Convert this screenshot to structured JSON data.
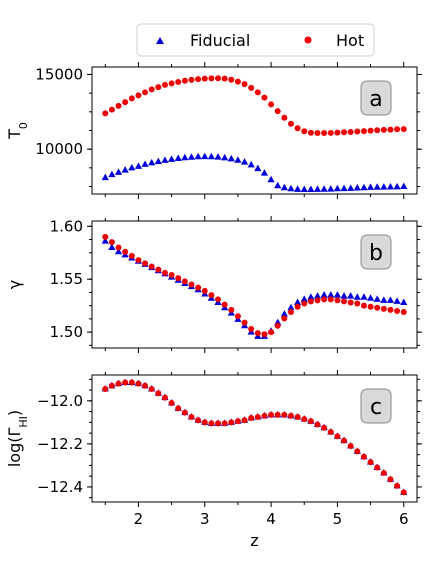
{
  "legend": {
    "entries": [
      {
        "label": "Fiducial",
        "marker": "triangle",
        "color": "#0000dd"
      },
      {
        "label": "Hot",
        "marker": "circle",
        "color": "#ee0000"
      }
    ]
  },
  "chart_data": [
    {
      "type": "scatter",
      "panel": "a",
      "ylabel": "T_0",
      "ylim": [
        7000,
        15500
      ],
      "yticks": [
        10000,
        15000
      ],
      "xlim": [
        1.3,
        6.2
      ],
      "xticks": [
        2,
        3,
        4,
        5,
        6
      ],
      "series": [
        {
          "name": "Fiducial",
          "x_start": 1.5,
          "x_step": 0.1,
          "y": [
            8100,
            8300,
            8450,
            8600,
            8750,
            8850,
            8980,
            9080,
            9170,
            9250,
            9320,
            9380,
            9430,
            9460,
            9490,
            9500,
            9490,
            9470,
            9420,
            9350,
            9260,
            9130,
            8950,
            8700,
            8400,
            7950,
            7550,
            7420,
            7350,
            7310,
            7300,
            7300,
            7310,
            7320,
            7330,
            7350,
            7360,
            7380,
            7400,
            7420,
            7440,
            7450,
            7460,
            7470,
            7480,
            7500
          ]
        },
        {
          "name": "Hot",
          "x_start": 1.5,
          "x_step": 0.1,
          "y": [
            12400,
            12650,
            12900,
            13150,
            13400,
            13600,
            13800,
            14000,
            14150,
            14300,
            14400,
            14500,
            14580,
            14640,
            14690,
            14720,
            14740,
            14750,
            14720,
            14650,
            14520,
            14350,
            14100,
            13800,
            13450,
            13000,
            12550,
            12100,
            11700,
            11400,
            11200,
            11100,
            11080,
            11080,
            11090,
            11110,
            11130,
            11150,
            11180,
            11210,
            11240,
            11270,
            11290,
            11310,
            11330,
            11340
          ]
        }
      ]
    },
    {
      "type": "scatter",
      "panel": "b",
      "ylabel": "γ",
      "ylim": [
        1.485,
        1.605
      ],
      "yticks": [
        1.5,
        1.55,
        1.6
      ],
      "xlim": [
        1.3,
        6.2
      ],
      "xticks": [
        2,
        3,
        4,
        5,
        6
      ],
      "series": [
        {
          "name": "Fiducial",
          "x_start": 1.5,
          "x_step": 0.1,
          "y": [
            1.586,
            1.58,
            1.576,
            1.573,
            1.57,
            1.567,
            1.564,
            1.561,
            1.558,
            1.555,
            1.552,
            1.549,
            1.546,
            1.543,
            1.54,
            1.536,
            1.532,
            1.528,
            1.523,
            1.518,
            1.512,
            1.506,
            1.5,
            1.496,
            1.496,
            1.501,
            1.509,
            1.517,
            1.523,
            1.528,
            1.531,
            1.533,
            1.534,
            1.535,
            1.535,
            1.535,
            1.534,
            1.534,
            1.533,
            1.533,
            1.532,
            1.531,
            1.53,
            1.53,
            1.529,
            1.528
          ]
        },
        {
          "name": "Hot",
          "x_start": 1.5,
          "x_step": 0.1,
          "y": [
            1.59,
            1.585,
            1.58,
            1.576,
            1.572,
            1.568,
            1.565,
            1.562,
            1.559,
            1.556,
            1.554,
            1.551,
            1.548,
            1.545,
            1.542,
            1.539,
            1.535,
            1.531,
            1.526,
            1.521,
            1.515,
            1.509,
            1.503,
            1.499,
            1.498,
            1.5,
            1.506,
            1.513,
            1.519,
            1.524,
            1.527,
            1.529,
            1.53,
            1.531,
            1.531,
            1.53,
            1.529,
            1.528,
            1.527,
            1.525,
            1.524,
            1.523,
            1.522,
            1.521,
            1.52,
            1.519
          ]
        }
      ]
    },
    {
      "type": "scatter",
      "panel": "c",
      "ylabel": "log(Γ_HI)",
      "ylim": [
        -12.47,
        -11.88
      ],
      "yticks": [
        -12.0,
        -12.2,
        -12.4
      ],
      "xlim": [
        1.3,
        6.2
      ],
      "xticks": [
        2,
        3,
        4,
        5,
        6
      ],
      "xlabel": "z",
      "series": [
        {
          "name": "Fiducial",
          "x_start": 1.5,
          "x_step": 0.1,
          "y": [
            -11.945,
            -11.93,
            -11.92,
            -11.915,
            -11.915,
            -11.92,
            -11.93,
            -11.945,
            -11.965,
            -11.985,
            -12.01,
            -12.035,
            -12.055,
            -12.075,
            -12.09,
            -12.1,
            -12.105,
            -12.105,
            -12.105,
            -12.1,
            -12.095,
            -12.09,
            -12.08,
            -12.075,
            -12.07,
            -12.065,
            -12.065,
            -12.065,
            -12.07,
            -12.075,
            -12.085,
            -12.095,
            -12.11,
            -12.125,
            -12.145,
            -12.165,
            -12.185,
            -12.21,
            -12.235,
            -12.26,
            -12.285,
            -12.31,
            -12.335,
            -12.365,
            -12.395,
            -12.425
          ]
        },
        {
          "name": "Hot",
          "x_start": 1.5,
          "x_step": 0.1,
          "y": [
            -11.945,
            -11.93,
            -11.92,
            -11.915,
            -11.915,
            -11.92,
            -11.93,
            -11.945,
            -11.965,
            -11.985,
            -12.01,
            -12.035,
            -12.055,
            -12.075,
            -12.09,
            -12.1,
            -12.105,
            -12.105,
            -12.105,
            -12.1,
            -12.095,
            -12.09,
            -12.08,
            -12.075,
            -12.07,
            -12.065,
            -12.065,
            -12.065,
            -12.07,
            -12.075,
            -12.085,
            -12.095,
            -12.11,
            -12.125,
            -12.145,
            -12.165,
            -12.185,
            -12.21,
            -12.235,
            -12.26,
            -12.285,
            -12.31,
            -12.335,
            -12.365,
            -12.395,
            -12.425
          ]
        }
      ]
    }
  ]
}
